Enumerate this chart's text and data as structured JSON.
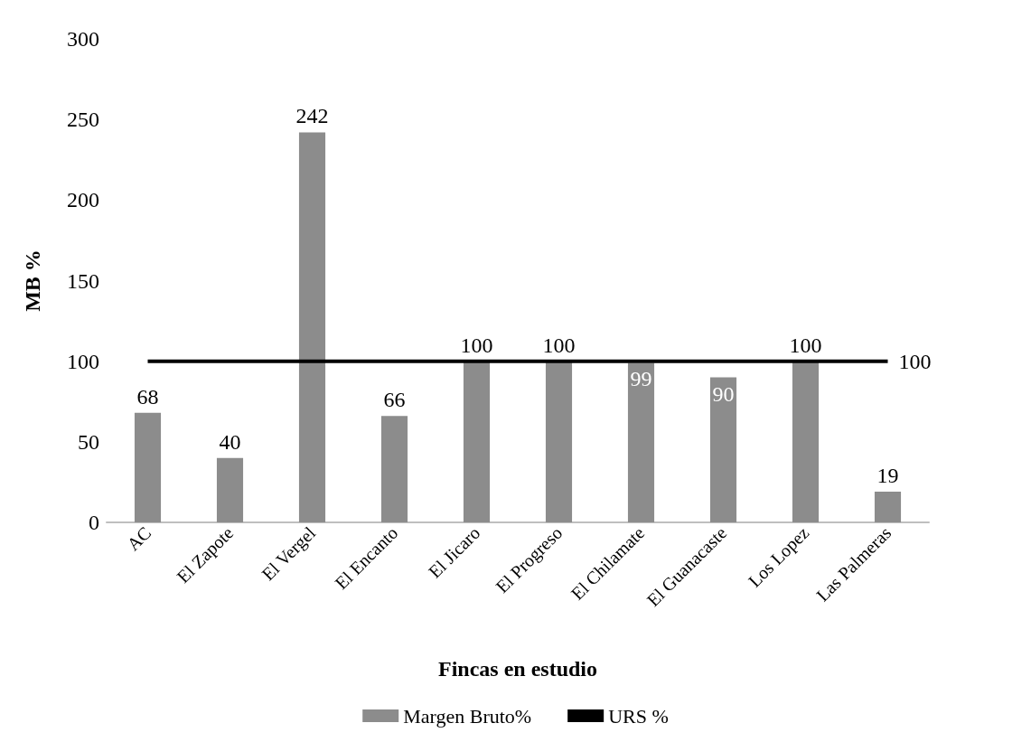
{
  "chart_data": {
    "type": "bar",
    "xlabel": "Fincas en estudio",
    "ylabel": "MB %",
    "categories": [
      "AC",
      "El Zapote",
      "El Vergel",
      "El Encanto",
      "El Jicaro",
      "El Progreso",
      "El Chilamate",
      "El Guanacaste",
      "Los Lopez",
      "Las Palmeras"
    ],
    "series": [
      {
        "name": "Margen Bruto%",
        "color": "#8c8c8c",
        "values": [
          68,
          40,
          242,
          66,
          100,
          100,
          99,
          90,
          100,
          19
        ],
        "value_labels": [
          "68",
          "40",
          "242",
          "66",
          "100",
          "100",
          "99",
          "90",
          "100",
          "19"
        ]
      },
      {
        "name": "URS %",
        "type": "line",
        "color": "#000000",
        "values": [
          100,
          100,
          100,
          100,
          100,
          100,
          100,
          100,
          100,
          100
        ],
        "value_labels": [
          null,
          null,
          null,
          null,
          null,
          null,
          null,
          null,
          null,
          "100"
        ]
      }
    ],
    "ylim": [
      0,
      300
    ],
    "yticks": [
      0,
      50,
      100,
      150,
      200,
      250,
      300
    ],
    "grid": false,
    "legend": "bottom",
    "marker": "none"
  }
}
